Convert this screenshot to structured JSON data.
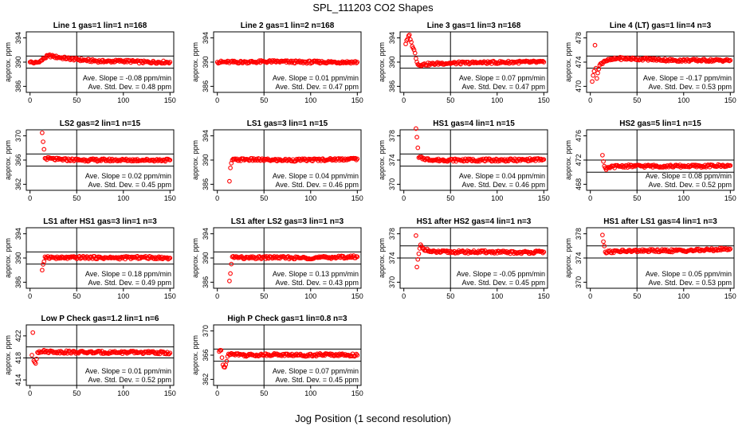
{
  "figure": {
    "title": "SPL_111203  CO2 Shapes",
    "xlabel": "Jog Position (1 second resolution)"
  },
  "colors": {
    "points": "#ff0000",
    "frame": "#000000"
  },
  "chart_data": [
    {
      "type": "scatter",
      "title": "Line 1 gas=1 lin=1 n=168",
      "ylabel": "approx. ppm",
      "xlim": [
        -4,
        154
      ],
      "ylim": [
        385,
        395
      ],
      "xticks": [
        0,
        50,
        100,
        150
      ],
      "yticks": [
        386,
        390,
        394
      ],
      "hlines": [
        391,
        389
      ],
      "vline": 50,
      "stats": [
        "Ave. Slope = -0.08  ppm/min",
        "Ave. Std. Dev. = 0.48  ppm"
      ],
      "series": [
        {
          "x": [
            0,
            5,
            10,
            15,
            20,
            25,
            40,
            60,
            80,
            100,
            120,
            150
          ],
          "y": [
            390.0,
            389.9,
            390.0,
            390.6,
            391.1,
            390.9,
            390.6,
            390.3,
            390.1,
            390.2,
            390.0,
            390.0
          ]
        }
      ]
    },
    {
      "type": "scatter",
      "title": "Line 2 gas=1 lin=2 n=168",
      "ylabel": "approx. ppm",
      "xlim": [
        -4,
        154
      ],
      "ylim": [
        385,
        395
      ],
      "xticks": [
        0,
        50,
        100,
        150
      ],
      "yticks": [
        386,
        390,
        394
      ],
      "hlines": [],
      "vline": 50,
      "stats": [
        "Ave. Slope = 0.01  ppm/min",
        "Ave. Std. Dev. = 0.47  ppm"
      ],
      "series": [
        {
          "x": [
            0,
            30,
            60,
            90,
            120,
            150
          ],
          "y": [
            390.0,
            390.0,
            390.1,
            390.0,
            390.0,
            390.0
          ]
        }
      ]
    },
    {
      "type": "scatter",
      "title": "Line 3 gas=1 lin=3 n=168",
      "ylabel": "approx. ppm",
      "xlim": [
        -4,
        154
      ],
      "ylim": [
        385,
        395
      ],
      "xticks": [
        0,
        50,
        100,
        150
      ],
      "yticks": [
        386,
        390,
        394
      ],
      "hlines": [
        391,
        389
      ],
      "vline": 50,
      "stats": [
        "Ave. Slope = 0.07  ppm/min",
        "Ave. Std. Dev. = 0.47  ppm"
      ],
      "series": [
        {
          "x": [
            2,
            4,
            6,
            8,
            10,
            12,
            14,
            16,
            20,
            40,
            80,
            120,
            150
          ],
          "y": [
            393.0,
            393.8,
            394.5,
            393.3,
            392.3,
            391.5,
            390.0,
            389.5,
            389.6,
            389.8,
            389.9,
            390.0,
            390.0
          ]
        }
      ]
    },
    {
      "type": "scatter",
      "title": "Line 4 (LT) gas=1 lin=4 n=3",
      "ylabel": "approx. ppm",
      "xlim": [
        -4,
        154
      ],
      "ylim": [
        469,
        479
      ],
      "xticks": [
        0,
        50,
        100,
        150
      ],
      "yticks": [
        470,
        474,
        478
      ],
      "hlines": [
        475,
        473
      ],
      "vline": 50,
      "stats": [
        "Ave. Slope = -0.17  ppm/min",
        "Ave. Std. Dev. = 0.53  ppm"
      ],
      "series": [
        {
          "x": [
            2,
            3,
            4,
            5,
            6,
            7,
            8,
            10,
            15,
            30,
            60,
            90,
            120,
            150
          ],
          "y": [
            470.8,
            471.8,
            472.5,
            476.8,
            473.0,
            471.3,
            472.2,
            473.5,
            474.2,
            474.6,
            474.5,
            474.3,
            474.3,
            474.3
          ]
        }
      ]
    },
    {
      "type": "scatter",
      "title": "LS2 gas=2 lin=1 n=15",
      "ylabel": "approx. ppm",
      "xlim": [
        -4,
        154
      ],
      "ylim": [
        361,
        371
      ],
      "xticks": [
        0,
        50,
        100,
        150
      ],
      "yticks": [
        362,
        366,
        370
      ],
      "hlines": [
        367,
        365
      ],
      "vline": 50,
      "stats": [
        "Ave. Slope = 0.02  ppm/min",
        "Ave. Std. Dev. = 0.45  ppm"
      ],
      "series": [
        {
          "x": [
            13,
            16,
            30,
            60,
            90,
            120,
            150
          ],
          "y": [
            370.5,
            366.3,
            366.1,
            366.0,
            366.0,
            366.0,
            366.0
          ]
        }
      ]
    },
    {
      "type": "scatter",
      "title": "LS1 gas=3 lin=1 n=15",
      "ylabel": "approx. ppm",
      "xlim": [
        -4,
        154
      ],
      "ylim": [
        385,
        395
      ],
      "xticks": [
        0,
        50,
        100,
        150
      ],
      "yticks": [
        386,
        390,
        394
      ],
      "hlines": [],
      "vline": 50,
      "stats": [
        "Ave. Slope = 0.04  ppm/min",
        "Ave. Std. Dev. = 0.46  ppm"
      ],
      "series": [
        {
          "x": [
            13,
            14,
            16,
            30,
            60,
            90,
            120,
            150
          ],
          "y": [
            386.5,
            388.7,
            390.0,
            390.1,
            390.0,
            390.0,
            390.1,
            390.2
          ]
        }
      ]
    },
    {
      "type": "scatter",
      "title": "HS1 gas=4 lin=1 n=15",
      "ylabel": "approx. ppm",
      "xlim": [
        -4,
        154
      ],
      "ylim": [
        369,
        379
      ],
      "xticks": [
        0,
        50,
        100,
        150
      ],
      "yticks": [
        370,
        374,
        378
      ],
      "hlines": [
        375,
        373
      ],
      "vline": 50,
      "stats": [
        "Ave. Slope = 0.04  ppm/min",
        "Ave. Std. Dev. = 0.46  ppm"
      ],
      "series": [
        {
          "x": [
            13,
            16,
            30,
            60,
            90,
            120,
            150
          ],
          "y": [
            379.2,
            374.4,
            374.0,
            374.0,
            374.0,
            374.0,
            374.1
          ]
        }
      ]
    },
    {
      "type": "scatter",
      "title": "HS2 gas=5 lin=1 n=15",
      "ylabel": "approx. ppm",
      "xlim": [
        -4,
        154
      ],
      "ylim": [
        467,
        477
      ],
      "xticks": [
        0,
        50,
        100,
        150
      ],
      "yticks": [
        468,
        472,
        476
      ],
      "hlines": [
        472,
        470
      ],
      "vline": 50,
      "stats": [
        "Ave. Slope = 0.08  ppm/min",
        "Ave. Std. Dev. = 0.52  ppm"
      ],
      "series": [
        {
          "x": [
            13,
            15,
            17,
            20,
            30,
            60,
            90,
            120,
            150
          ],
          "y": [
            472.8,
            471.0,
            470.4,
            470.8,
            471.0,
            471.0,
            471.0,
            471.0,
            471.1
          ]
        }
      ]
    },
    {
      "type": "scatter",
      "title": "LS1 after HS1 gas=3 lin=1 n=3",
      "ylabel": "approx. ppm",
      "xlim": [
        -4,
        154
      ],
      "ylim": [
        385,
        395
      ],
      "xticks": [
        0,
        50,
        100,
        150
      ],
      "yticks": [
        386,
        390,
        394
      ],
      "hlines": [
        391,
        389
      ],
      "vline": 50,
      "stats": [
        "Ave. Slope = 0.18  ppm/min",
        "Ave. Std. Dev. = 0.49  ppm"
      ],
      "series": [
        {
          "x": [
            13,
            16,
            30,
            60,
            90,
            120,
            150
          ],
          "y": [
            388.0,
            390.2,
            390.0,
            390.1,
            390.0,
            390.1,
            390.0
          ]
        }
      ]
    },
    {
      "type": "scatter",
      "title": "LS1 after LS2 gas=3 lin=1 n=3",
      "ylabel": "approx. ppm",
      "xlim": [
        -4,
        154
      ],
      "ylim": [
        385,
        395
      ],
      "xticks": [
        0,
        50,
        100,
        150
      ],
      "yticks": [
        386,
        390,
        394
      ],
      "hlines": [
        391,
        389
      ],
      "vline": 50,
      "stats": [
        "Ave. Slope = 0.13  ppm/min",
        "Ave. Std. Dev. = 0.43  ppm"
      ],
      "series": [
        {
          "x": [
            13,
            16,
            30,
            60,
            90,
            120,
            150
          ],
          "y": [
            386.2,
            390.2,
            390.0,
            390.1,
            390.0,
            390.1,
            390.2
          ]
        }
      ]
    },
    {
      "type": "scatter",
      "title": "HS1 after HS2 gas=4 lin=1 n=3",
      "ylabel": "approx. ppm",
      "xlim": [
        -4,
        154
      ],
      "ylim": [
        369,
        379
      ],
      "xticks": [
        0,
        50,
        100,
        150
      ],
      "yticks": [
        370,
        374,
        378
      ],
      "hlines": [
        376,
        374
      ],
      "vline": 50,
      "stats": [
        "Ave. Slope = -0.05  ppm/min",
        "Ave. Std. Dev. = 0.45  ppm"
      ],
      "series": [
        {
          "x": [
            13,
            14,
            16,
            18,
            20,
            30,
            60,
            90,
            120,
            150
          ],
          "y": [
            377.7,
            372.5,
            374.7,
            376.2,
            375.6,
            375.0,
            375.0,
            375.0,
            374.9,
            375.0
          ]
        }
      ]
    },
    {
      "type": "scatter",
      "title": "HS1 after LS1 gas=4 lin=1 n=3",
      "ylabel": "approx. ppm",
      "xlim": [
        -4,
        154
      ],
      "ylim": [
        369,
        379
      ],
      "xticks": [
        0,
        50,
        100,
        150
      ],
      "yticks": [
        370,
        374,
        378
      ],
      "hlines": [
        376,
        374
      ],
      "vline": 50,
      "stats": [
        "Ave. Slope = 0.05  ppm/min",
        "Ave. Std. Dev. = 0.53  ppm"
      ],
      "series": [
        {
          "x": [
            13,
            16,
            30,
            60,
            90,
            120,
            150
          ],
          "y": [
            377.8,
            375.0,
            375.1,
            375.2,
            375.2,
            375.3,
            375.5
          ]
        }
      ]
    },
    {
      "type": "scatter",
      "title": "Low P Check gas=1.2 lin=1 n=6",
      "ylabel": "approx. ppm",
      "xlim": [
        -4,
        154
      ],
      "ylim": [
        413,
        424
      ],
      "xticks": [
        0,
        50,
        100,
        150
      ],
      "yticks": [
        414,
        418,
        422
      ],
      "hlines": [
        420,
        418
      ],
      "vline": 50,
      "stats": [
        "Ave. Slope = 0.01  ppm/min",
        "Ave. Std. Dev. = 0.52  ppm"
      ],
      "series": [
        {
          "x": [
            2,
            3,
            4,
            6,
            8,
            10,
            30,
            60,
            90,
            120,
            150
          ],
          "y": [
            418.5,
            422.6,
            417.5,
            417.0,
            419.0,
            419.2,
            419.1,
            419.0,
            419.0,
            419.0,
            418.9
          ]
        }
      ]
    },
    {
      "type": "scatter",
      "title": "High P Check gas=1 lin=0.8 n=3",
      "ylabel": "approx. ppm",
      "xlim": [
        -4,
        154
      ],
      "ylim": [
        361,
        371
      ],
      "xticks": [
        0,
        50,
        100,
        150
      ],
      "yticks": [
        362,
        366,
        370
      ],
      "hlines": [
        367,
        365
      ],
      "vline": 50,
      "stats": [
        "Ave. Slope = 0.07  ppm/min",
        "Ave. Std. Dev. = 0.45  ppm"
      ],
      "series": [
        {
          "x": [
            2,
            4,
            6,
            8,
            10,
            12,
            15,
            30,
            60,
            90,
            120,
            150
          ],
          "y": [
            366.6,
            366.8,
            364.4,
            364.0,
            365.0,
            366.2,
            366.3,
            366.0,
            366.1,
            366.0,
            366.1,
            366.0
          ]
        }
      ]
    }
  ]
}
